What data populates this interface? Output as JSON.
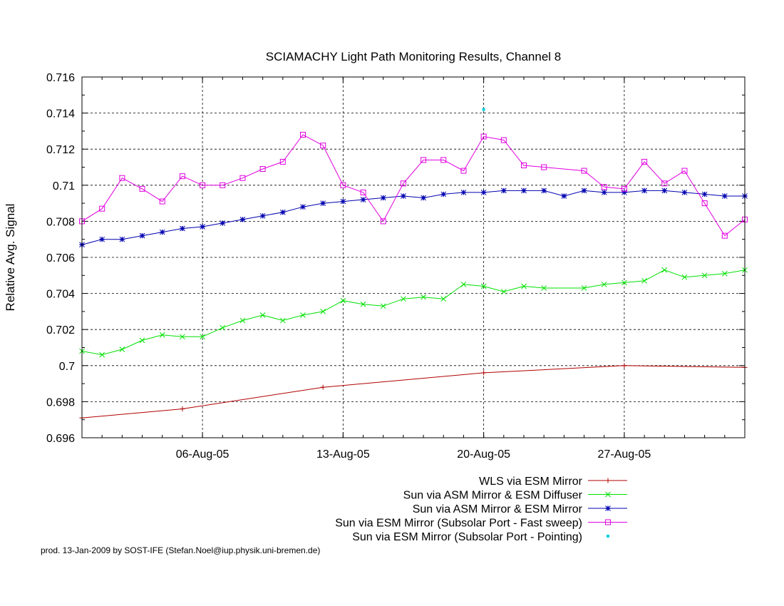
{
  "chart_data": {
    "type": "line",
    "title": "SCIAMACHY Light Path Monitoring Results, Channel 8",
    "xlabel": "",
    "ylabel": "Relative Avg. Signal",
    "xlim": [
      "2005-07-31",
      "2005-09-02"
    ],
    "ylim": [
      0.696,
      0.716
    ],
    "x_ticks": [
      {
        "date": "2005-08-06",
        "label": "06-Aug-05"
      },
      {
        "date": "2005-08-13",
        "label": "13-Aug-05"
      },
      {
        "date": "2005-08-20",
        "label": "20-Aug-05"
      },
      {
        "date": "2005-08-27",
        "label": "27-Aug-05"
      }
    ],
    "y_ticks": [
      {
        "value": 0.696,
        "label": "0.696"
      },
      {
        "value": 0.698,
        "label": "0.698"
      },
      {
        "value": 0.7,
        "label": "0.7"
      },
      {
        "value": 0.702,
        "label": "0.702"
      },
      {
        "value": 0.704,
        "label": "0.704"
      },
      {
        "value": 0.706,
        "label": "0.706"
      },
      {
        "value": 0.708,
        "label": "0.708"
      },
      {
        "value": 0.71,
        "label": "0.71"
      },
      {
        "value": 0.712,
        "label": "0.712"
      },
      {
        "value": 0.714,
        "label": "0.714"
      },
      {
        "value": 0.716,
        "label": "0.716"
      }
    ],
    "grid": true,
    "legend_position": "bottom",
    "credit": "prod. 13-Jan-2009 by SOST-IFE (Stefan.Noel@iup.physik.uni-bremen.de)",
    "series": [
      {
        "name": "WLS via ESM Mirror",
        "color": "#b00000",
        "marker": "plus",
        "x": [
          "2005-07-31",
          "2005-08-05",
          "2005-08-12",
          "2005-08-20",
          "2005-08-27",
          "2005-09-02"
        ],
        "y": [
          0.6971,
          0.6976,
          0.6988,
          0.6996,
          0.7,
          0.6999
        ]
      },
      {
        "name": "Sun via ASM Mirror & ESM Diffuser",
        "color": "#00e000",
        "marker": "cross",
        "x": [
          "2005-07-31",
          "2005-08-01",
          "2005-08-02",
          "2005-08-03",
          "2005-08-04",
          "2005-08-05",
          "2005-08-06",
          "2005-08-07",
          "2005-08-08",
          "2005-08-09",
          "2005-08-10",
          "2005-08-11",
          "2005-08-12",
          "2005-08-13",
          "2005-08-14",
          "2005-08-15",
          "2005-08-16",
          "2005-08-17",
          "2005-08-18",
          "2005-08-19",
          "2005-08-20",
          "2005-08-21",
          "2005-08-22",
          "2005-08-23",
          "2005-08-25",
          "2005-08-26",
          "2005-08-27",
          "2005-08-28",
          "2005-08-29",
          "2005-08-30",
          "2005-08-31",
          "2005-09-01",
          "2005-09-02"
        ],
        "y": [
          0.7008,
          0.7006,
          0.7009,
          0.7014,
          0.7017,
          0.7016,
          0.7016,
          0.7021,
          0.7025,
          0.7028,
          0.7025,
          0.7028,
          0.703,
          0.7036,
          0.7034,
          0.7033,
          0.7037,
          0.7038,
          0.7037,
          0.7045,
          0.7044,
          0.7041,
          0.7044,
          0.7043,
          0.7043,
          0.7045,
          0.7046,
          0.7047,
          0.7053,
          0.7049,
          0.705,
          0.7051,
          0.7053
        ]
      },
      {
        "name": "Sun via ASM Mirror & ESM Mirror",
        "color": "#0000b0",
        "marker": "star",
        "x": [
          "2005-07-31",
          "2005-08-01",
          "2005-08-02",
          "2005-08-03",
          "2005-08-04",
          "2005-08-05",
          "2005-08-06",
          "2005-08-07",
          "2005-08-08",
          "2005-08-09",
          "2005-08-10",
          "2005-08-11",
          "2005-08-12",
          "2005-08-13",
          "2005-08-14",
          "2005-08-15",
          "2005-08-16",
          "2005-08-17",
          "2005-08-18",
          "2005-08-19",
          "2005-08-20",
          "2005-08-21",
          "2005-08-22",
          "2005-08-23",
          "2005-08-24",
          "2005-08-25",
          "2005-08-26",
          "2005-08-27",
          "2005-08-28",
          "2005-08-29",
          "2005-08-30",
          "2005-08-31",
          "2005-09-01",
          "2005-09-02"
        ],
        "y": [
          0.7067,
          0.707,
          0.707,
          0.7072,
          0.7074,
          0.7076,
          0.7077,
          0.7079,
          0.7081,
          0.7083,
          0.7085,
          0.7088,
          0.709,
          0.7091,
          0.7092,
          0.7093,
          0.7094,
          0.7093,
          0.7095,
          0.7096,
          0.7096,
          0.7097,
          0.7097,
          0.7097,
          0.7094,
          0.7097,
          0.7096,
          0.7096,
          0.7097,
          0.7097,
          0.7096,
          0.7095,
          0.7094,
          0.7094
        ]
      },
      {
        "name": "Sun via ESM Mirror (Subsolar Port - Fast sweep)",
        "color": "#e000e0",
        "marker": "square",
        "x": [
          "2005-07-31",
          "2005-08-01",
          "2005-08-02",
          "2005-08-03",
          "2005-08-04",
          "2005-08-05",
          "2005-08-06",
          "2005-08-07",
          "2005-08-08",
          "2005-08-09",
          "2005-08-10",
          "2005-08-11",
          "2005-08-12",
          "2005-08-13",
          "2005-08-14",
          "2005-08-15",
          "2005-08-16",
          "2005-08-17",
          "2005-08-18",
          "2005-08-19",
          "2005-08-20",
          "2005-08-21",
          "2005-08-22",
          "2005-08-23",
          "2005-08-25",
          "2005-08-26",
          "2005-08-27",
          "2005-08-28",
          "2005-08-29",
          "2005-08-30",
          "2005-08-31",
          "2005-09-01",
          "2005-09-02"
        ],
        "y": [
          0.708,
          0.7087,
          0.7104,
          0.7098,
          0.7091,
          0.7105,
          0.71,
          0.71,
          0.7104,
          0.7109,
          0.7113,
          0.7128,
          0.7122,
          0.71,
          0.7096,
          0.708,
          0.7101,
          0.7114,
          0.7114,
          0.7108,
          0.7127,
          0.7125,
          0.7111,
          0.711,
          0.7108,
          0.7099,
          0.7098,
          0.7113,
          0.7101,
          0.7108,
          0.709,
          0.7072,
          0.7081
        ]
      },
      {
        "name": "Sun via ESM Mirror (Subsolar Port - Pointing)",
        "color": "#00d0e0",
        "marker": "dot",
        "x": [
          "2005-08-20"
        ],
        "y": [
          0.7142
        ]
      }
    ]
  }
}
